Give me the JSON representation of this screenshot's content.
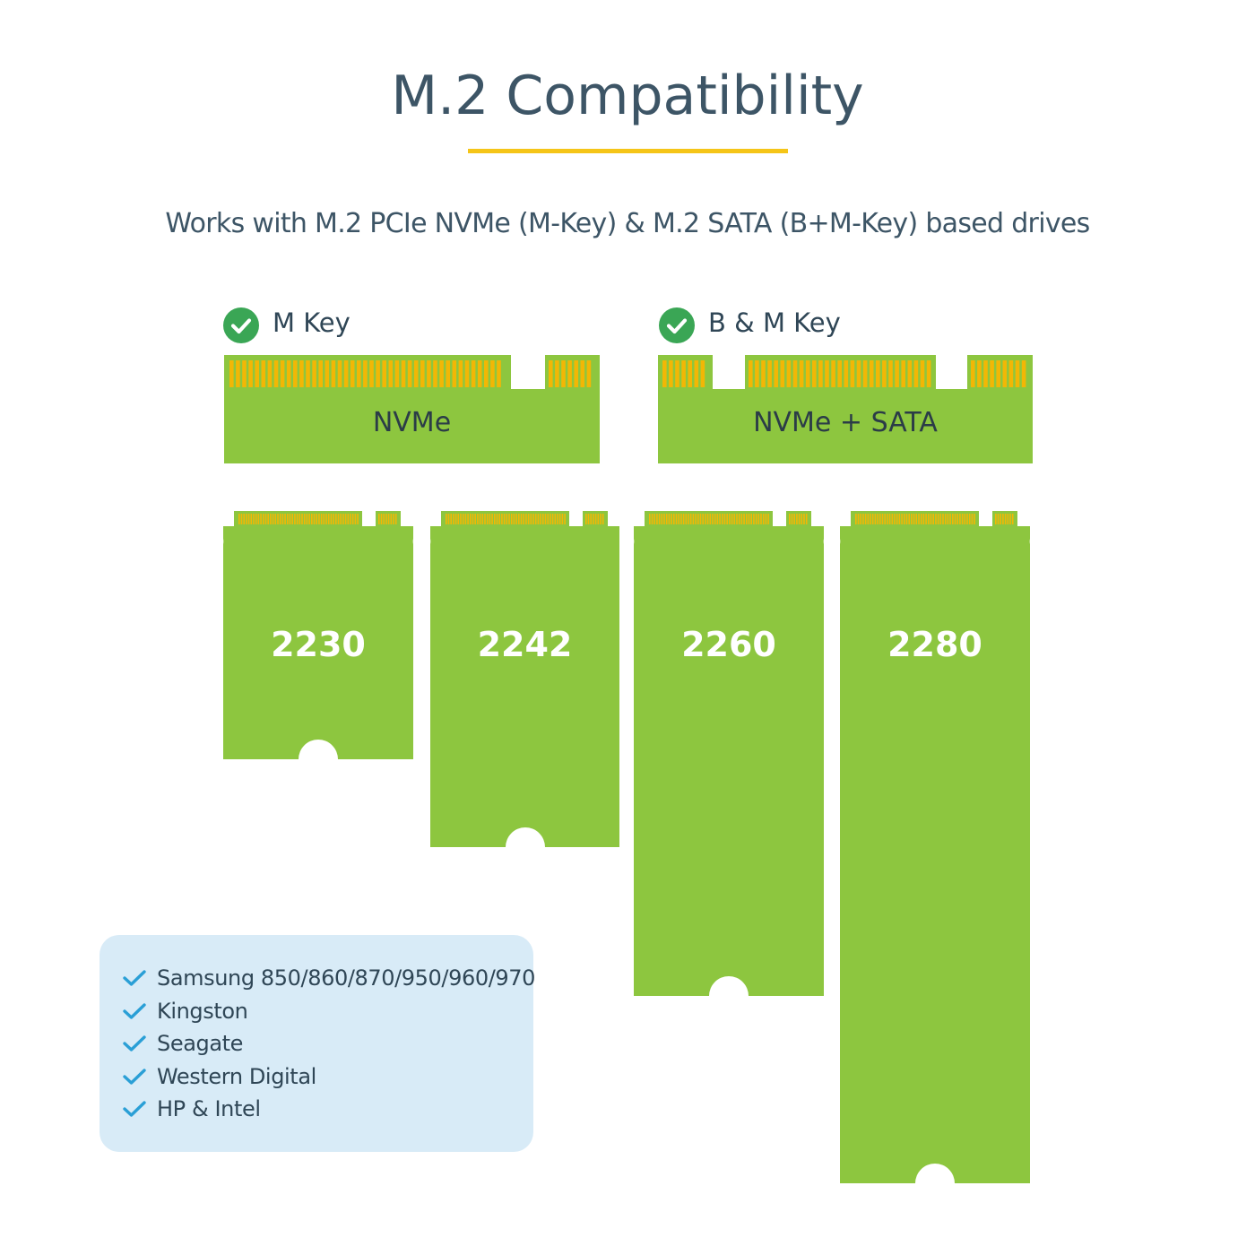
{
  "header": {
    "title": "M.2 Compatibility",
    "subtitle": "Works with M.2 PCIe NVMe (M-Key) & M.2 SATA (B+M-Key) based drives"
  },
  "keys": [
    {
      "label": "M Key",
      "connector_label": "NVMe"
    },
    {
      "label": "B & M Key",
      "connector_label": "NVMe + SATA"
    }
  ],
  "drives": [
    {
      "size": "2230"
    },
    {
      "size": "2242"
    },
    {
      "size": "2260"
    },
    {
      "size": "2280"
    }
  ],
  "brands": {
    "items": [
      "Samsung 850/860/870/950/960/970",
      "Kingston",
      "Seagate",
      "Western Digital",
      "HP & Intel"
    ]
  },
  "colors": {
    "board_green": "#8dc63f",
    "pin_gold": "#f2b705",
    "check_green": "#3aa655",
    "title_text": "#3d5566",
    "accent_yellow": "#f5c518",
    "panel_blue": "#d8ebf7",
    "brand_check_blue": "#2a9fd6"
  }
}
